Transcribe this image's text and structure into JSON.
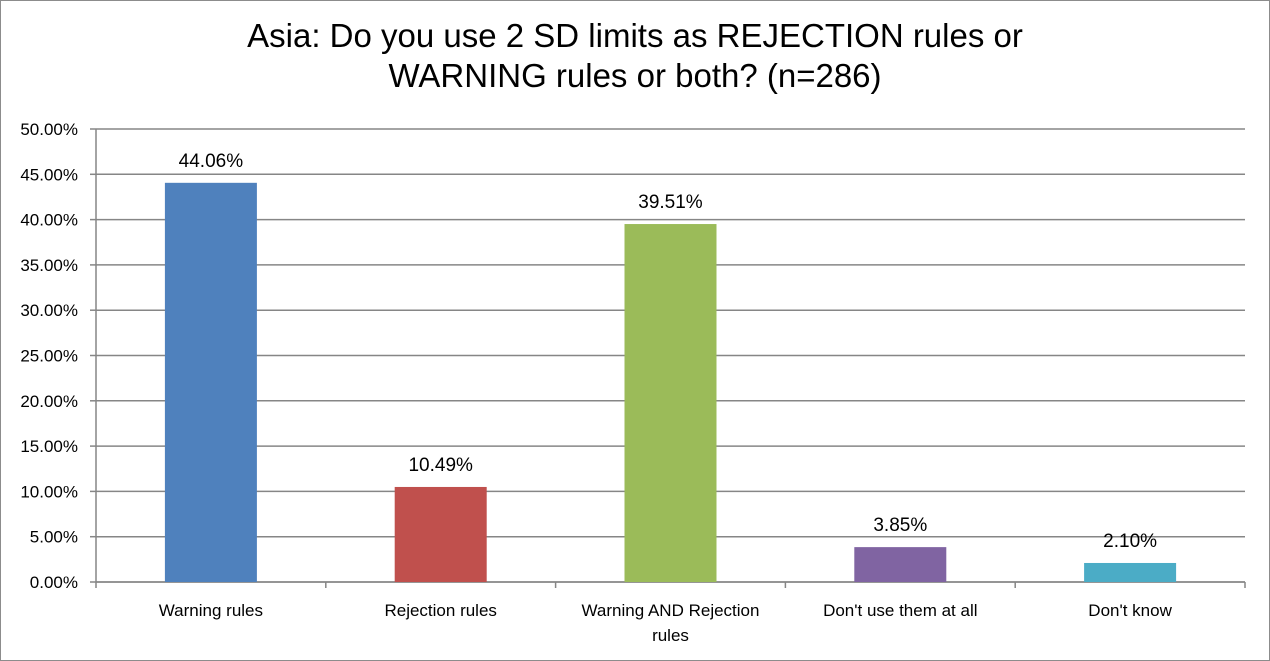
{
  "chart_data": {
    "type": "bar",
    "title_lines": [
      "Asia: Do you use 2 SD limits as REJECTION rules or",
      "WARNING rules or both? (n=286)"
    ],
    "categories": [
      [
        "Warning rules"
      ],
      [
        "Rejection rules"
      ],
      [
        "Warning AND Rejection",
        "rules"
      ],
      [
        "Don't use them at all"
      ],
      [
        "Don't know"
      ]
    ],
    "values": [
      44.06,
      10.49,
      39.51,
      3.85,
      2.1
    ],
    "data_labels": [
      "44.06%",
      "10.49%",
      "39.51%",
      "3.85%",
      "2.10%"
    ],
    "colors": [
      "#4f81bd",
      "#c0504d",
      "#9bbb59",
      "#8064a2",
      "#4bacc6"
    ],
    "ylim": [
      0,
      50
    ],
    "y_ticks": [
      "0.00%",
      "5.00%",
      "10.00%",
      "15.00%",
      "20.00%",
      "25.00%",
      "30.00%",
      "35.00%",
      "40.00%",
      "45.00%",
      "50.00%"
    ],
    "grid": true,
    "legend": "none"
  }
}
